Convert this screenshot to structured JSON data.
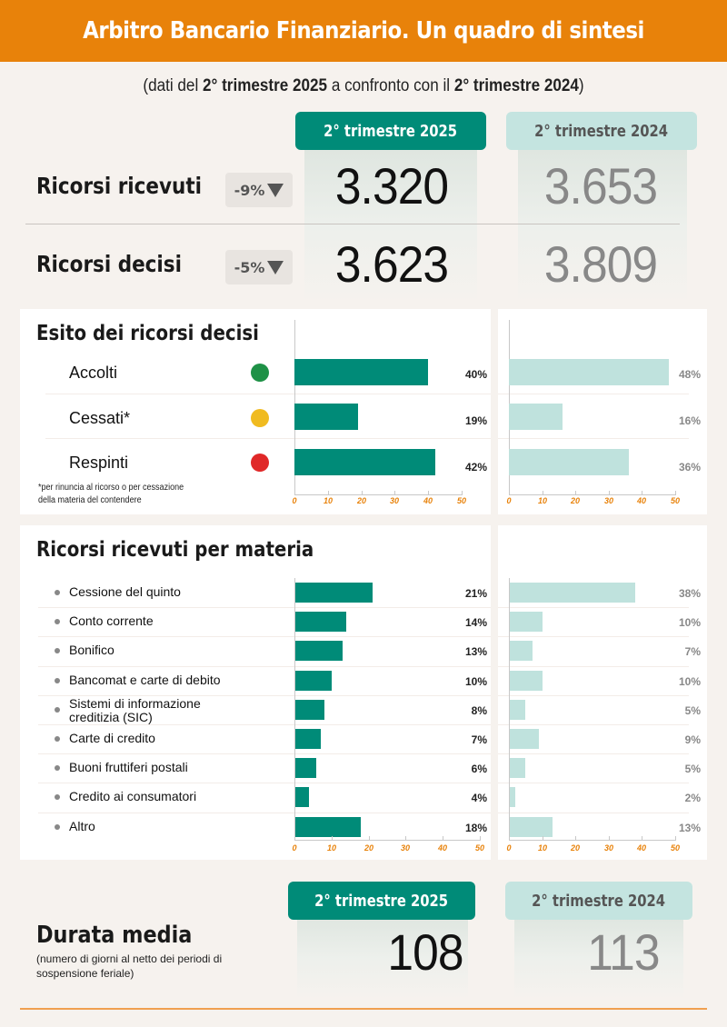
{
  "header": {
    "title": "Arbitro Bancario Finanziario. Un quadro di sintesi",
    "subtitle_pre": "(dati del ",
    "subtitle_b1": "2° trimestre 2025",
    "subtitle_mid": " a confronto con il ",
    "subtitle_b2": "2° trimestre  2024",
    "subtitle_post": ")"
  },
  "periods": {
    "current": "2° trimestre 2025",
    "previous": "2° trimestre 2024"
  },
  "colors": {
    "brand_orange": "#e8820a",
    "current_teal": "#008b78",
    "previous_teal_light": "#bfe2dd",
    "accolti": "#1e9146",
    "cessati": "#f0bb20",
    "respinti": "#e02828"
  },
  "metrics": [
    {
      "label": "Ricorsi ricevuti",
      "delta": "-9%",
      "current": "3.320",
      "previous": "3.653"
    },
    {
      "label": "Ricorsi decisi",
      "delta": "-5%",
      "current": "3.623",
      "previous": "3.809"
    }
  ],
  "esito": {
    "title": "Esito dei ricorsi decisi",
    "footnote_line1": "*per rinuncia al ricorso o per cessazione",
    "footnote_line2": "della materia del contendere",
    "rows": [
      {
        "label": "Accolti",
        "dot": "green",
        "current": "40%",
        "previous": "48%"
      },
      {
        "label": "Cessati*",
        "dot": "yellow",
        "current": "19%",
        "previous": "16%"
      },
      {
        "label": "Respinti",
        "dot": "red",
        "current": "42%",
        "previous": "36%"
      }
    ]
  },
  "materia": {
    "title": "Ricorsi ricevuti per materia",
    "rows": [
      {
        "label": "Cessione del quinto",
        "current": "21%",
        "previous": "38%"
      },
      {
        "label": "Conto corrente",
        "current": "14%",
        "previous": "10%"
      },
      {
        "label": "Bonifico",
        "current": "13%",
        "previous": "7%"
      },
      {
        "label": "Bancomat e carte di debito",
        "current": "10%",
        "previous": "10%"
      },
      {
        "label": "Sistemi di informazione",
        "label2": "creditizia (SIC)",
        "current": "8%",
        "previous": "5%"
      },
      {
        "label": "Carte di credito",
        "current": "7%",
        "previous": "9%"
      },
      {
        "label": "Buoni fruttiferi postali",
        "current": "6%",
        "previous": "5%"
      },
      {
        "label": "Credito ai consumatori",
        "current": "4%",
        "previous": "2%"
      },
      {
        "label": "Altro",
        "current": "18%",
        "previous": "13%"
      }
    ]
  },
  "axis": {
    "ticks": [
      "0",
      "10",
      "20",
      "30",
      "40",
      "50"
    ]
  },
  "durata": {
    "title": "Durata media",
    "note": "(numero di giorni al netto dei periodi di sospensione feriale)",
    "current": "108",
    "previous": "113"
  },
  "chart_data": [
    {
      "type": "bar",
      "title": "Esito dei ricorsi decisi",
      "orientation": "horizontal",
      "categories": [
        "Accolti",
        "Cessati*",
        "Respinti"
      ],
      "series": [
        {
          "name": "2° trimestre 2025",
          "values": [
            40,
            19,
            42
          ]
        },
        {
          "name": "2° trimestre 2024",
          "values": [
            48,
            16,
            36
          ]
        }
      ],
      "xlabel": "",
      "ylabel": "",
      "xlim": [
        0,
        50
      ],
      "xticks": [
        0,
        10,
        20,
        30,
        40,
        50
      ],
      "annotation": "*per rinuncia al ricorso o per cessazione della materia del contendere"
    },
    {
      "type": "bar",
      "title": "Ricorsi ricevuti per materia",
      "orientation": "horizontal",
      "categories": [
        "Cessione del quinto",
        "Conto corrente",
        "Bonifico",
        "Bancomat e carte di debito",
        "Sistemi di informazione creditizia (SIC)",
        "Carte di credito",
        "Buoni fruttiferi postali",
        "Credito ai consumatori",
        "Altro"
      ],
      "series": [
        {
          "name": "2° trimestre 2025",
          "values": [
            21,
            14,
            13,
            10,
            8,
            7,
            6,
            4,
            18
          ]
        },
        {
          "name": "2° trimestre 2024",
          "values": [
            38,
            10,
            7,
            10,
            5,
            9,
            5,
            2,
            13
          ]
        }
      ],
      "xlabel": "",
      "ylabel": "",
      "xlim": [
        0,
        50
      ],
      "xticks": [
        0,
        10,
        20,
        30,
        40,
        50
      ]
    },
    {
      "type": "table",
      "title": "Sintesi",
      "categories": [
        "Ricorsi ricevuti",
        "Ricorsi decisi",
        "Durata media (giorni)"
      ],
      "series": [
        {
          "name": "2° trimestre 2025",
          "values": [
            3320,
            3623,
            108
          ]
        },
        {
          "name": "2° trimestre 2024",
          "values": [
            3653,
            3809,
            113
          ]
        }
      ],
      "deltas": {
        "Ricorsi ricevuti": "-9%",
        "Ricorsi decisi": "-5%"
      }
    }
  ]
}
